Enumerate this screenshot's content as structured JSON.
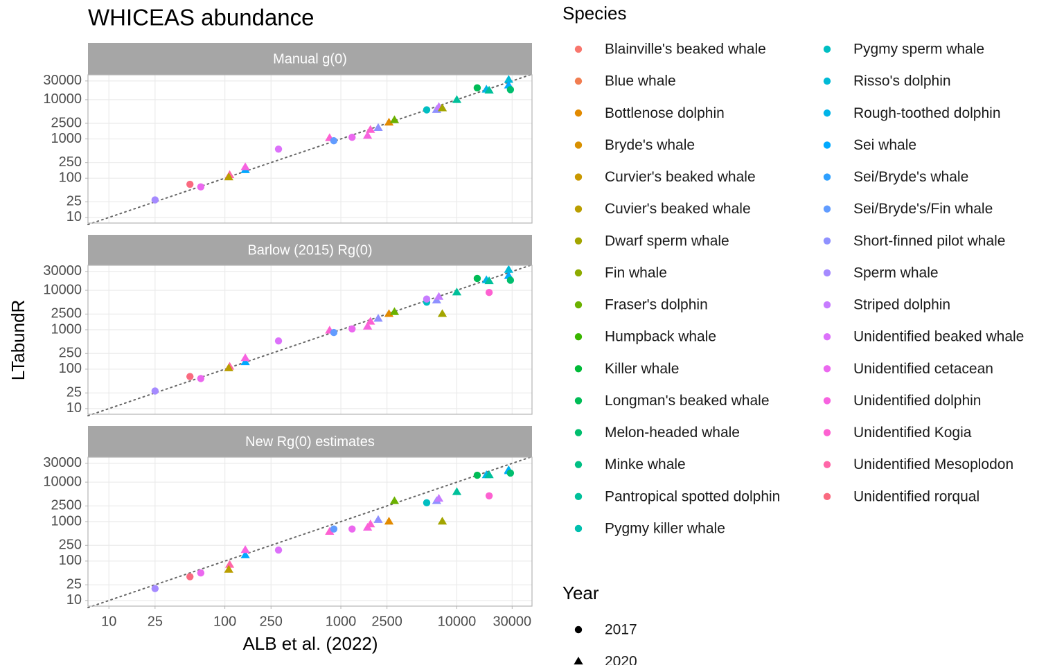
{
  "chart_data": {
    "type": "scatter",
    "title": "WHICEAS abundance",
    "x_label": "ALB et al. (2022)",
    "y_label": "LTabundR",
    "log_x": true,
    "log_y": true,
    "grid": true,
    "xlim": [
      6.6,
      44500
    ],
    "xticks": [
      10,
      25,
      100,
      250,
      1000,
      2500,
      10000,
      30000
    ],
    "ylim": [
      7.2,
      43000
    ],
    "yticks": [
      10,
      25,
      100,
      250,
      1000,
      2500,
      10000,
      30000
    ],
    "facets": [
      {
        "title": "Manual g(0)",
        "x": [
          25,
          50,
          62,
          110,
          108,
          150,
          150,
          290,
          800,
          870,
          1250,
          1700,
          1800,
          2100,
          2600,
          2900,
          5500,
          6700,
          7000,
          7500,
          10000,
          15000,
          18000,
          19000,
          28000,
          28000,
          29000
        ],
        "y": [
          28,
          70,
          60,
          120,
          105,
          160,
          190,
          550,
          1050,
          900,
          1100,
          1200,
          1700,
          1900,
          2600,
          3000,
          5500,
          5500,
          6500,
          6000,
          9800,
          20000,
          18000,
          17000,
          32000,
          23000,
          18000
        ],
        "species": [
          23,
          30,
          26,
          29,
          5,
          19,
          27,
          25,
          28,
          21,
          26,
          27,
          28,
          22,
          2,
          8,
          16,
          22,
          24,
          6,
          14,
          11,
          18,
          14,
          17,
          19,
          12
        ],
        "year": [
          0,
          0,
          0,
          1,
          1,
          1,
          1,
          0,
          1,
          0,
          0,
          1,
          1,
          1,
          1,
          1,
          0,
          1,
          1,
          1,
          1,
          0,
          1,
          1,
          1,
          1,
          0
        ]
      },
      {
        "title": "Barlow (2015) Rg(0)",
        "x": [
          25,
          50,
          62,
          110,
          108,
          150,
          150,
          290,
          800,
          870,
          1250,
          1700,
          1800,
          2100,
          2600,
          2900,
          5500,
          6700,
          7000,
          7500,
          10000,
          15000,
          18000,
          19000,
          28000,
          28000,
          29000,
          5500,
          19000
        ],
        "y": [
          28,
          65,
          58,
          115,
          105,
          150,
          190,
          520,
          950,
          850,
          1050,
          1200,
          1600,
          1900,
          2500,
          2800,
          5000,
          5500,
          6800,
          2500,
          8800,
          20000,
          18000,
          17000,
          33000,
          23000,
          18000,
          6000,
          8800
        ],
        "species": [
          23,
          30,
          26,
          29,
          5,
          19,
          27,
          25,
          28,
          21,
          26,
          27,
          28,
          22,
          2,
          8,
          16,
          22,
          24,
          6,
          14,
          11,
          18,
          14,
          17,
          19,
          12,
          24,
          28
        ],
        "year": [
          0,
          0,
          0,
          1,
          1,
          1,
          1,
          0,
          1,
          0,
          0,
          1,
          1,
          1,
          1,
          1,
          0,
          1,
          1,
          1,
          1,
          0,
          1,
          1,
          1,
          1,
          0,
          0,
          0
        ]
      },
      {
        "title": "New Rg(0) estimates",
        "x": [
          25,
          50,
          62,
          110,
          108,
          150,
          150,
          290,
          800,
          870,
          1250,
          1700,
          1800,
          2100,
          2600,
          2900,
          5500,
          6700,
          7000,
          7500,
          10000,
          15000,
          18000,
          19000,
          19000,
          28000,
          28000,
          29000
        ],
        "y": [
          20,
          40,
          50,
          80,
          60,
          140,
          190,
          190,
          550,
          650,
          650,
          700,
          850,
          1100,
          1000,
          3300,
          3000,
          3300,
          3800,
          1000,
          5600,
          15000,
          15000,
          15000,
          4500,
          20000,
          19000,
          17000
        ],
        "species": [
          23,
          30,
          26,
          29,
          5,
          19,
          27,
          25,
          28,
          21,
          26,
          27,
          28,
          22,
          2,
          8,
          16,
          22,
          24,
          6,
          14,
          11,
          18,
          14,
          28,
          17,
          19,
          12
        ],
        "year": [
          0,
          0,
          0,
          1,
          1,
          1,
          1,
          0,
          1,
          0,
          0,
          1,
          1,
          1,
          1,
          1,
          0,
          1,
          1,
          1,
          1,
          0,
          1,
          1,
          0,
          1,
          1,
          0
        ]
      }
    ],
    "legend_species": {
      "title": "Species",
      "items": [
        {
          "name": "Blainville's beaked whale",
          "color": "#F8766D"
        },
        {
          "name": "Blue whale",
          "color": "#F17D50"
        },
        {
          "name": "Bottlenose dolphin",
          "color": "#E28A00"
        },
        {
          "name": "Bryde's whale",
          "color": "#D89000"
        },
        {
          "name": "Curvier's beaked whale",
          "color": "#C99800"
        },
        {
          "name": "Cuvier's beaked whale",
          "color": "#BA9E00"
        },
        {
          "name": "Dwarf sperm whale",
          "color": "#A3A500"
        },
        {
          "name": "Fin whale",
          "color": "#8EAB00"
        },
        {
          "name": "Fraser's dolphin",
          "color": "#6BB100"
        },
        {
          "name": "Humpback whale",
          "color": "#39B600"
        },
        {
          "name": "Killer whale",
          "color": "#00BA38"
        },
        {
          "name": "Longman's beaked whale",
          "color": "#00BC56"
        },
        {
          "name": "Melon-headed whale",
          "color": "#00BE6E"
        },
        {
          "name": "Minke whale",
          "color": "#00BF84"
        },
        {
          "name": "Pantropical spotted dolphin",
          "color": "#00C09A"
        },
        {
          "name": "Pygmy killer whale",
          "color": "#00BFAE"
        },
        {
          "name": "Pygmy sperm whale",
          "color": "#00BEC2"
        },
        {
          "name": "Risso's dolphin",
          "color": "#00BAD6"
        },
        {
          "name": "Rough-toothed dolphin",
          "color": "#00B4E8"
        },
        {
          "name": "Sei whale",
          "color": "#00A9FF"
        },
        {
          "name": "Sei/Bryde's whale",
          "color": "#2EA0FF"
        },
        {
          "name": "Sei/Bryde's/Fin whale",
          "color": "#619CFF"
        },
        {
          "name": "Short-finned pilot whale",
          "color": "#8F91FF"
        },
        {
          "name": "Sperm whale",
          "color": "#A58AFF"
        },
        {
          "name": "Striped dolphin",
          "color": "#C77CFF"
        },
        {
          "name": "Unidentified beaked whale",
          "color": "#DC71FA"
        },
        {
          "name": "Unidentified cetacean",
          "color": "#EB68EF"
        },
        {
          "name": "Unidentified dolphin",
          "color": "#F763E0"
        },
        {
          "name": "Unidentified Kogia",
          "color": "#FD61D1"
        },
        {
          "name": "Unidentified Mesoplodon",
          "color": "#FF66A8"
        },
        {
          "name": "Unidentified rorqual",
          "color": "#FA6A80"
        }
      ]
    },
    "legend_year": {
      "title": "Year",
      "items": [
        {
          "name": "2017",
          "shape": "circle"
        },
        {
          "name": "2020",
          "shape": "triangle"
        }
      ]
    }
  }
}
